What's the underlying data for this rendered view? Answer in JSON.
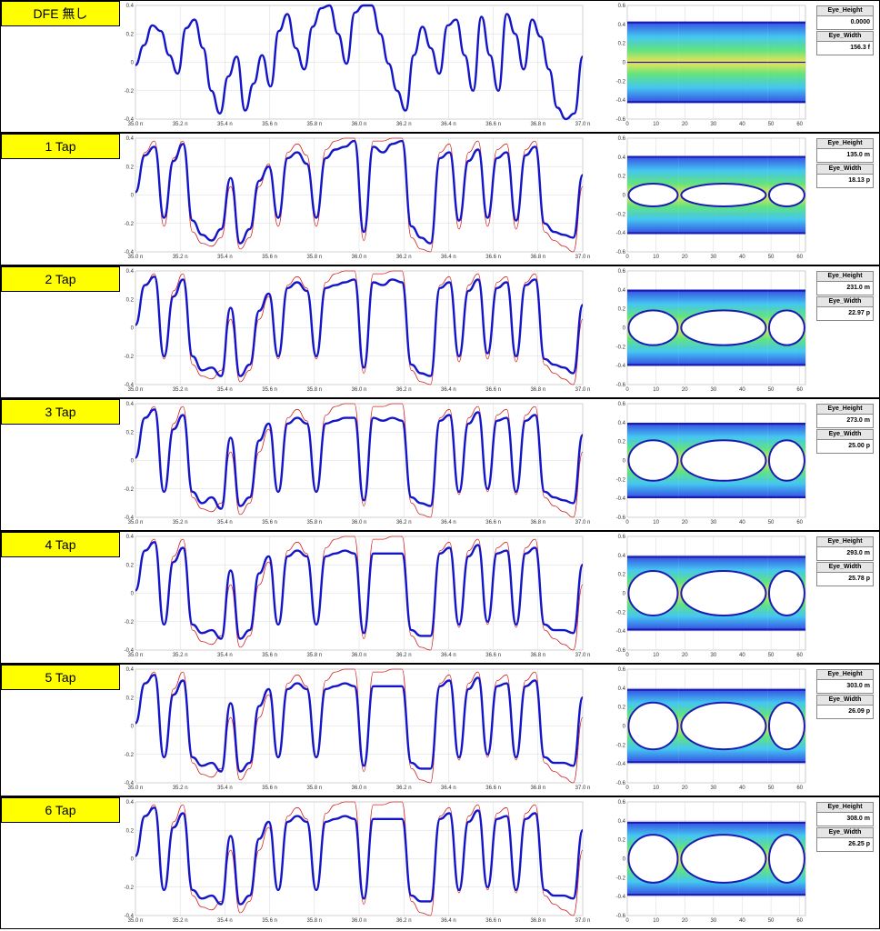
{
  "colors": {
    "label_bg": "#ffff00",
    "wave_dfe": "#1414c8",
    "wave_raw": "#d02020",
    "grid": "#d8d8d8"
  },
  "measure_titles": {
    "height": "Eye_Height",
    "width": "Eye_Width"
  },
  "wave_axis": {
    "x_ticks": [
      "35.0 n",
      "35.2 n",
      "35.4 n",
      "35.6 n",
      "35.8 n",
      "36.0 n",
      "36.2 n",
      "36.4 n",
      "36.6 n",
      "36.8 n",
      "37.0 n"
    ],
    "y_ticks": [
      "0.4",
      "0.2",
      "0",
      "-0.2",
      "-0.4"
    ]
  },
  "eye_axis": {
    "x_ticks": [
      "0",
      "10",
      "20",
      "30",
      "40",
      "50",
      "60"
    ],
    "y_ticks": [
      "0.6",
      "0.4",
      "0.2",
      "0",
      "-0.2",
      "-0.4",
      "-0.6"
    ]
  },
  "panels": [
    {
      "label": "DFE 無し",
      "eye_height": "0.0000",
      "eye_width": "156.3 f"
    },
    {
      "label": "1 Tap",
      "eye_height": "135.0 m",
      "eye_width": "18.13 p"
    },
    {
      "label": "2 Tap",
      "eye_height": "231.0 m",
      "eye_width": "22.97 p"
    },
    {
      "label": "3 Tap",
      "eye_height": "273.0 m",
      "eye_width": "25.00 p"
    },
    {
      "label": "4 Tap",
      "eye_height": "293.0 m",
      "eye_width": "25.78 p"
    },
    {
      "label": "5 Tap",
      "eye_height": "303.0 m",
      "eye_width": "26.09 p"
    },
    {
      "label": "6 Tap",
      "eye_height": "308.0 m",
      "eye_width": "26.25 p"
    }
  ],
  "chart_data": [
    {
      "type": "line",
      "x_unit": "ns",
      "xlim": [
        35.0,
        37.0
      ],
      "ylim": [
        -0.4,
        0.4
      ],
      "series": [
        {
          "values": [
            -0.02,
            0.12,
            0.26,
            0.22,
            0.05,
            -0.08,
            0.24,
            0.3,
            0.1,
            -0.2,
            -0.36,
            -0.1,
            0.04,
            -0.34,
            -0.15,
            0.05,
            -0.17,
            0.22,
            0.34,
            0.1,
            -0.05,
            0.25,
            0.38,
            0.4,
            0.2,
            -0.01,
            0.35,
            0.4,
            0.4,
            0.2,
            -0.01,
            -0.2,
            -0.34,
            0.05,
            0.25,
            0.1,
            -0.08,
            0.26,
            0.3,
            0.05,
            -0.2,
            0.32,
            0.05,
            -0.2,
            0.34,
            0.2,
            -0.05,
            0.3,
            0.18,
            -0.05,
            -0.32,
            -0.42,
            -0.36,
            0.04
          ]
        }
      ]
    },
    {
      "type": "heatmap",
      "x_range": [
        0,
        62
      ],
      "y_range": [
        -0.6,
        0.6
      ],
      "eye_open_fraction": 0.0
    },
    {
      "type": "line",
      "xlim": [
        35.0,
        37.0
      ],
      "ylim": [
        -0.4,
        0.4
      ],
      "series": [
        {
          "values": [
            0.02,
            0.28,
            0.34,
            -0.16,
            0.24,
            0.36,
            -0.18,
            -0.28,
            -0.32,
            -0.24,
            0.12,
            -0.34,
            -0.24,
            0.1,
            0.2,
            -0.16,
            0.26,
            0.3,
            0.22,
            -0.16,
            0.26,
            0.32,
            0.34,
            0.38,
            -0.26,
            0.34,
            0.3,
            0.36,
            0.38,
            -0.22,
            -0.3,
            -0.34,
            0.26,
            0.3,
            -0.18,
            0.24,
            0.32,
            -0.16,
            0.26,
            0.3,
            -0.18,
            0.28,
            0.34,
            -0.2,
            -0.26,
            -0.28,
            -0.3,
            0.14
          ]
        },
        {
          "values": [
            0.02,
            0.3,
            0.38,
            -0.22,
            0.26,
            0.38,
            -0.26,
            -0.34,
            -0.36,
            -0.3,
            0.06,
            -0.38,
            -0.3,
            0.06,
            0.22,
            -0.22,
            0.3,
            0.36,
            0.28,
            -0.22,
            0.32,
            0.38,
            0.4,
            0.4,
            -0.32,
            0.38,
            0.38,
            0.4,
            0.4,
            -0.3,
            -0.38,
            -0.4,
            0.3,
            0.36,
            -0.24,
            0.3,
            0.38,
            -0.22,
            0.32,
            0.36,
            -0.24,
            0.32,
            0.38,
            -0.26,
            -0.32,
            -0.36,
            -0.4,
            0.06
          ]
        }
      ]
    },
    {
      "type": "heatmap",
      "x_range": [
        0,
        62
      ],
      "y_range": [
        -0.6,
        0.6
      ],
      "eye_open_fraction": 0.35
    },
    {
      "type": "line",
      "xlim": [
        35.0,
        37.0
      ],
      "ylim": [
        -0.4,
        0.4
      ],
      "series": [
        {
          "values": [
            0.02,
            0.3,
            0.36,
            -0.2,
            0.22,
            0.34,
            -0.2,
            -0.3,
            -0.28,
            -0.34,
            0.14,
            -0.34,
            -0.26,
            0.12,
            0.24,
            -0.2,
            0.28,
            0.32,
            0.26,
            -0.2,
            0.28,
            0.3,
            0.32,
            0.34,
            -0.28,
            0.32,
            0.3,
            0.34,
            0.32,
            -0.26,
            -0.32,
            -0.34,
            0.28,
            0.32,
            -0.2,
            0.26,
            0.34,
            -0.18,
            0.28,
            0.32,
            -0.2,
            0.3,
            0.34,
            -0.22,
            -0.26,
            -0.28,
            -0.32,
            0.16
          ]
        },
        {
          "values": [
            0.02,
            0.3,
            0.38,
            -0.22,
            0.26,
            0.38,
            -0.26,
            -0.34,
            -0.36,
            -0.3,
            0.06,
            -0.38,
            -0.3,
            0.06,
            0.22,
            -0.22,
            0.3,
            0.36,
            0.28,
            -0.22,
            0.32,
            0.38,
            0.4,
            0.4,
            -0.32,
            0.38,
            0.38,
            0.4,
            0.4,
            -0.3,
            -0.38,
            -0.4,
            0.3,
            0.36,
            -0.24,
            0.3,
            0.38,
            -0.22,
            0.32,
            0.36,
            -0.24,
            0.32,
            0.38,
            -0.26,
            -0.32,
            -0.36,
            -0.4,
            0.06
          ]
        }
      ]
    },
    {
      "type": "heatmap",
      "x_range": [
        0,
        62
      ],
      "y_range": [
        -0.6,
        0.6
      ],
      "eye_open_fraction": 0.55
    },
    {
      "type": "line",
      "xlim": [
        35.0,
        37.0
      ],
      "ylim": [
        -0.4,
        0.4
      ],
      "series": [
        {
          "values": [
            0.02,
            0.3,
            0.36,
            -0.22,
            0.22,
            0.32,
            -0.22,
            -0.3,
            -0.26,
            -0.34,
            0.16,
            -0.32,
            -0.26,
            0.14,
            0.26,
            -0.22,
            0.26,
            0.3,
            0.26,
            -0.22,
            0.26,
            0.28,
            0.3,
            0.3,
            -0.28,
            0.3,
            0.28,
            0.3,
            0.28,
            -0.26,
            -0.3,
            -0.32,
            0.28,
            0.32,
            -0.22,
            0.26,
            0.34,
            -0.2,
            0.28,
            0.3,
            -0.22,
            0.28,
            0.32,
            -0.22,
            -0.26,
            -0.28,
            -0.3,
            0.18
          ]
        },
        {
          "values": [
            0.02,
            0.3,
            0.38,
            -0.22,
            0.26,
            0.38,
            -0.26,
            -0.34,
            -0.36,
            -0.3,
            0.06,
            -0.38,
            -0.3,
            0.06,
            0.22,
            -0.22,
            0.3,
            0.36,
            0.28,
            -0.22,
            0.32,
            0.38,
            0.4,
            0.4,
            -0.32,
            0.38,
            0.38,
            0.4,
            0.4,
            -0.3,
            -0.38,
            -0.4,
            0.3,
            0.36,
            -0.24,
            0.3,
            0.38,
            -0.22,
            0.32,
            0.36,
            -0.24,
            0.32,
            0.38,
            -0.26,
            -0.32,
            -0.36,
            -0.4,
            0.06
          ]
        }
      ]
    },
    {
      "type": "heatmap",
      "x_range": [
        0,
        62
      ],
      "y_range": [
        -0.6,
        0.6
      ],
      "eye_open_fraction": 0.65
    },
    {
      "type": "line",
      "xlim": [
        35.0,
        37.0
      ],
      "ylim": [
        -0.4,
        0.4
      ],
      "series": [
        {
          "values": [
            0.02,
            0.3,
            0.36,
            -0.22,
            0.22,
            0.32,
            -0.22,
            -0.28,
            -0.26,
            -0.32,
            0.16,
            -0.32,
            -0.26,
            0.14,
            0.26,
            -0.22,
            0.26,
            0.3,
            0.26,
            -0.22,
            0.26,
            0.28,
            0.3,
            0.28,
            -0.28,
            0.28,
            0.28,
            0.28,
            0.28,
            -0.26,
            -0.3,
            -0.3,
            0.28,
            0.32,
            -0.22,
            0.26,
            0.34,
            -0.2,
            0.28,
            0.3,
            -0.22,
            0.28,
            0.32,
            -0.22,
            -0.26,
            -0.26,
            -0.28,
            0.2
          ]
        },
        {
          "values": [
            0.02,
            0.3,
            0.38,
            -0.22,
            0.26,
            0.38,
            -0.26,
            -0.34,
            -0.36,
            -0.3,
            0.06,
            -0.38,
            -0.3,
            0.06,
            0.22,
            -0.22,
            0.3,
            0.36,
            0.28,
            -0.22,
            0.32,
            0.38,
            0.4,
            0.4,
            -0.32,
            0.38,
            0.38,
            0.4,
            0.4,
            -0.3,
            -0.38,
            -0.4,
            0.3,
            0.36,
            -0.24,
            0.3,
            0.38,
            -0.22,
            0.32,
            0.36,
            -0.24,
            0.32,
            0.38,
            -0.26,
            -0.32,
            -0.36,
            -0.4,
            0.06
          ]
        }
      ]
    },
    {
      "type": "heatmap",
      "x_range": [
        0,
        62
      ],
      "y_range": [
        -0.6,
        0.6
      ],
      "eye_open_fraction": 0.72
    },
    {
      "type": "line",
      "xlim": [
        35.0,
        37.0
      ],
      "ylim": [
        -0.4,
        0.4
      ],
      "series": [
        {
          "values": [
            0.02,
            0.3,
            0.36,
            -0.22,
            0.22,
            0.32,
            -0.22,
            -0.28,
            -0.26,
            -0.32,
            0.16,
            -0.32,
            -0.26,
            0.14,
            0.26,
            -0.22,
            0.26,
            0.3,
            0.26,
            -0.22,
            0.26,
            0.28,
            0.3,
            0.28,
            -0.28,
            0.28,
            0.28,
            0.28,
            0.28,
            -0.26,
            -0.3,
            -0.3,
            0.28,
            0.32,
            -0.22,
            0.26,
            0.34,
            -0.2,
            0.28,
            0.3,
            -0.22,
            0.28,
            0.32,
            -0.22,
            -0.26,
            -0.26,
            -0.28,
            0.2
          ]
        },
        {
          "values": [
            0.02,
            0.3,
            0.38,
            -0.22,
            0.26,
            0.38,
            -0.26,
            -0.34,
            -0.36,
            -0.3,
            0.06,
            -0.38,
            -0.3,
            0.06,
            0.22,
            -0.22,
            0.3,
            0.36,
            0.28,
            -0.22,
            0.32,
            0.38,
            0.4,
            0.4,
            -0.32,
            0.38,
            0.38,
            0.4,
            0.4,
            -0.3,
            -0.38,
            -0.4,
            0.3,
            0.36,
            -0.24,
            0.3,
            0.38,
            -0.22,
            0.32,
            0.36,
            -0.24,
            0.32,
            0.38,
            -0.26,
            -0.32,
            -0.36,
            -0.4,
            0.06
          ]
        }
      ]
    },
    {
      "type": "heatmap",
      "x_range": [
        0,
        62
      ],
      "y_range": [
        -0.6,
        0.6
      ],
      "eye_open_fraction": 0.76
    },
    {
      "type": "line",
      "xlim": [
        35.0,
        37.0
      ],
      "ylim": [
        -0.4,
        0.4
      ],
      "series": [
        {
          "values": [
            0.02,
            0.3,
            0.36,
            -0.22,
            0.22,
            0.32,
            -0.22,
            -0.28,
            -0.26,
            -0.32,
            0.16,
            -0.32,
            -0.26,
            0.14,
            0.26,
            -0.22,
            0.26,
            0.3,
            0.26,
            -0.22,
            0.26,
            0.28,
            0.3,
            0.28,
            -0.28,
            0.28,
            0.28,
            0.28,
            0.28,
            -0.26,
            -0.3,
            -0.3,
            0.28,
            0.32,
            -0.22,
            0.26,
            0.34,
            -0.2,
            0.28,
            0.3,
            -0.22,
            0.28,
            0.32,
            -0.22,
            -0.26,
            -0.26,
            -0.28,
            0.2
          ]
        },
        {
          "values": [
            0.02,
            0.3,
            0.38,
            -0.22,
            0.26,
            0.38,
            -0.26,
            -0.34,
            -0.36,
            -0.3,
            0.06,
            -0.38,
            -0.3,
            0.06,
            0.22,
            -0.22,
            0.3,
            0.36,
            0.28,
            -0.22,
            0.32,
            0.38,
            0.4,
            0.4,
            -0.32,
            0.38,
            0.38,
            0.4,
            0.4,
            -0.3,
            -0.38,
            -0.4,
            0.3,
            0.36,
            -0.24,
            0.3,
            0.38,
            -0.22,
            0.32,
            0.36,
            -0.24,
            0.32,
            0.38,
            -0.26,
            -0.32,
            -0.36,
            -0.4,
            0.06
          ]
        }
      ]
    },
    {
      "type": "heatmap",
      "x_range": [
        0,
        62
      ],
      "y_range": [
        -0.6,
        0.6
      ],
      "eye_open_fraction": 0.78
    },
    {
      "type": "line",
      "xlim": [
        35.0,
        37.0
      ],
      "ylim": [
        -0.4,
        0.4
      ],
      "series": [
        {
          "values": [
            0.02,
            0.3,
            0.36,
            -0.22,
            0.22,
            0.32,
            -0.22,
            -0.28,
            -0.26,
            -0.32,
            0.16,
            -0.32,
            -0.26,
            0.14,
            0.26,
            -0.22,
            0.26,
            0.3,
            0.26,
            -0.22,
            0.26,
            0.28,
            0.3,
            0.28,
            -0.28,
            0.28,
            0.28,
            0.28,
            0.28,
            -0.26,
            -0.3,
            -0.3,
            0.28,
            0.32,
            -0.22,
            0.26,
            0.34,
            -0.2,
            0.28,
            0.3,
            -0.22,
            0.28,
            0.32,
            -0.22,
            -0.26,
            -0.26,
            -0.28,
            0.2
          ]
        },
        {
          "values": [
            0.02,
            0.3,
            0.38,
            -0.22,
            0.26,
            0.38,
            -0.26,
            -0.34,
            -0.36,
            -0.3,
            0.06,
            -0.38,
            -0.3,
            0.06,
            0.22,
            -0.22,
            0.3,
            0.36,
            0.28,
            -0.22,
            0.32,
            0.38,
            0.4,
            0.4,
            -0.32,
            0.38,
            0.38,
            0.4,
            0.4,
            -0.3,
            -0.38,
            -0.4,
            0.3,
            0.36,
            -0.24,
            0.3,
            0.38,
            -0.22,
            0.32,
            0.36,
            -0.24,
            0.32,
            0.38,
            -0.26,
            -0.32,
            -0.36,
            -0.4,
            0.06
          ]
        }
      ]
    },
    {
      "type": "heatmap",
      "x_range": [
        0,
        62
      ],
      "y_range": [
        -0.6,
        0.6
      ],
      "eye_open_fraction": 0.8
    }
  ]
}
